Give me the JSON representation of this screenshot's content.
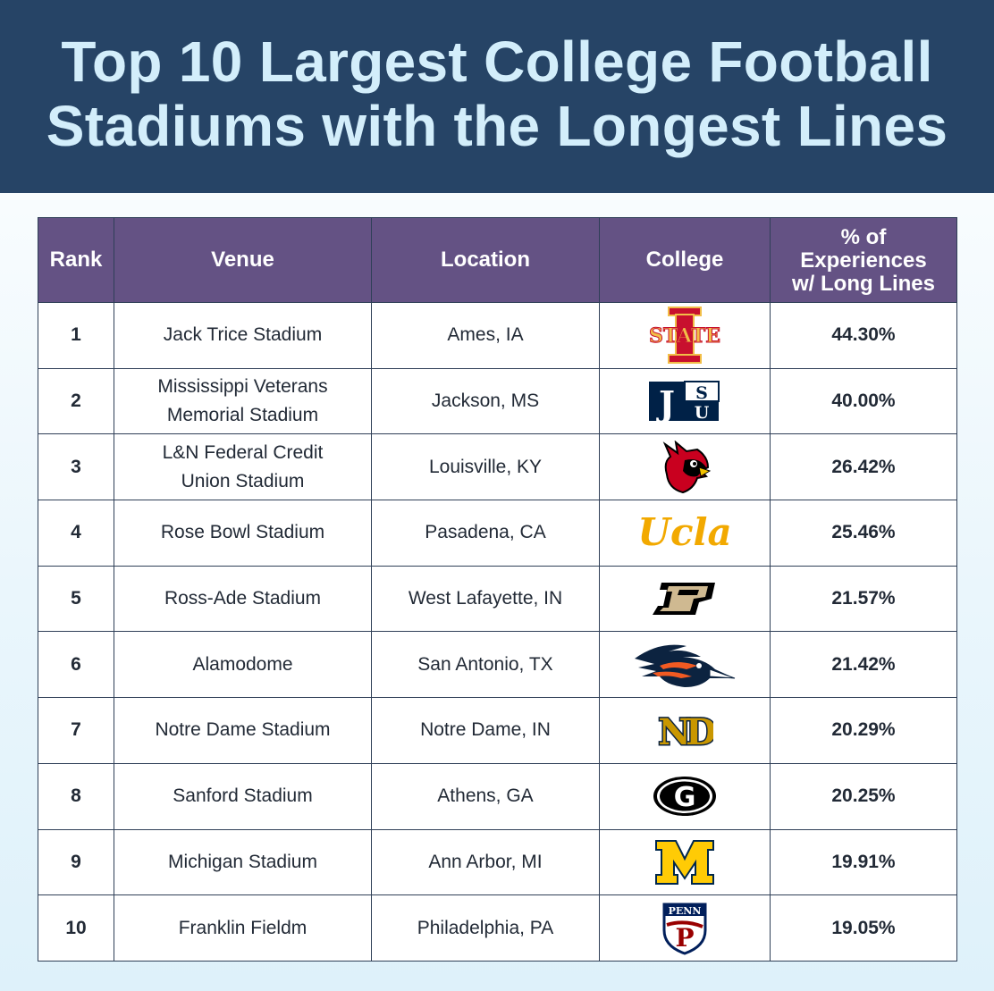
{
  "title": {
    "line1": "Top 10 Largest College Football",
    "line2": "Stadiums with the Longest Lines"
  },
  "table": {
    "headers": {
      "rank": "Rank",
      "venue": "Venue",
      "location": "Location",
      "college": "College",
      "pct_line1": "% of",
      "pct_line2": "Experiences",
      "pct_line3": "w/ Long Lines"
    },
    "rows": [
      {
        "rank": "1",
        "venue": "Jack Trice Stadium",
        "location": "Ames, IA",
        "logo": "iowa-state-logo",
        "logo_text": "STATE",
        "pct": "44.30%"
      },
      {
        "rank": "2",
        "venue": "Mississippi Veterans Memorial Stadium",
        "location": "Jackson, MS",
        "logo": "jackson-state-logo",
        "logo_text": "JSU",
        "pct": "40.00%"
      },
      {
        "rank": "3",
        "venue": "L&N Federal Credit Union Stadium",
        "location": "Louisville, KY",
        "logo": "louisville-cardinal-logo",
        "logo_text": "",
        "pct": "26.42%"
      },
      {
        "rank": "4",
        "venue": "Rose Bowl Stadium",
        "location": "Pasadena, CA",
        "logo": "ucla-logo",
        "logo_text": "Ucla",
        "pct": "25.46%"
      },
      {
        "rank": "5",
        "venue": "Ross-Ade Stadium",
        "location": "West Lafayette, IN",
        "logo": "purdue-logo",
        "logo_text": "P",
        "pct": "21.57%"
      },
      {
        "rank": "6",
        "venue": "Alamodome",
        "location": "San Antonio, TX",
        "logo": "utsa-roadrunner-logo",
        "logo_text": "",
        "pct": "21.42%"
      },
      {
        "rank": "7",
        "venue": "Notre Dame Stadium",
        "location": "Notre Dame, IN",
        "logo": "notre-dame-logo",
        "logo_text": "ND",
        "pct": "20.29%"
      },
      {
        "rank": "8",
        "venue": "Sanford Stadium",
        "location": "Athens, GA",
        "logo": "georgia-logo",
        "logo_text": "G",
        "pct": "20.25%"
      },
      {
        "rank": "9",
        "venue": "Michigan Stadium",
        "location": "Ann Arbor, MI",
        "logo": "michigan-logo",
        "logo_text": "M",
        "pct": "19.91%"
      },
      {
        "rank": "10",
        "venue": "Franklin Fieldm",
        "location": "Philadelphia, PA",
        "logo": "penn-logo",
        "logo_text": "PENN",
        "pct": "19.05%"
      }
    ]
  },
  "colors": {
    "header_bg": "#264466",
    "title_text": "#d3eefb",
    "table_header_bg": "#645284",
    "border": "#2f3f57"
  }
}
